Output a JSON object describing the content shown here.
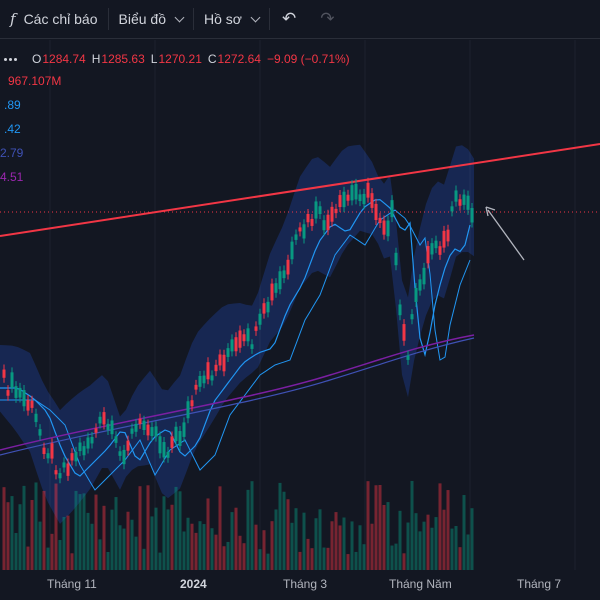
{
  "toolbar": {
    "fx_symbol": "f",
    "indicators_label": "Các chỉ báo",
    "chart_label": "Biểu đồ",
    "profile_label": "Hồ sơ",
    "undo_icon": "undo-icon",
    "redo_icon": "redo-icon"
  },
  "legend": {
    "o_label": "O",
    "o_value": "1284.74",
    "h_label": "H",
    "h_value": "1285.63",
    "l_label": "L",
    "l_value": "1270.21",
    "c_label": "C",
    "c_value": "1272.64",
    "change": "−9.09 (−0.71%)",
    "volume": "967.107M",
    "ma_values": [
      {
        "text": ".89",
        "color": "#2196f3"
      },
      {
        "text": ".42",
        "color": "#2196f3"
      },
      {
        "text": "2.79",
        "color": "#3f51b5"
      },
      {
        "text": "4.51",
        "color": "#9c27b0"
      }
    ]
  },
  "x_axis": [
    {
      "label": "Tháng 11",
      "bold": false
    },
    {
      "label": "2024",
      "bold": true
    },
    {
      "label": "Tháng 3",
      "bold": false
    },
    {
      "label": "Tháng Năm",
      "bold": false
    },
    {
      "label": "Tháng 7",
      "bold": false
    }
  ],
  "colors": {
    "up": "#089981",
    "down": "#f23645",
    "background": "#131722",
    "trendline": "#f23645",
    "band_fill": "#2962ff",
    "ma_short": "#2196f3",
    "ma_long": "#7b1fa2",
    "arrow": "#b2b5be"
  },
  "chart_data": {
    "type": "candlestick",
    "last_price_line": 1272.64,
    "ohlc_last": {
      "open": 1284.74,
      "high": 1285.63,
      "low": 1270.21,
      "close": 1272.64
    }
  }
}
